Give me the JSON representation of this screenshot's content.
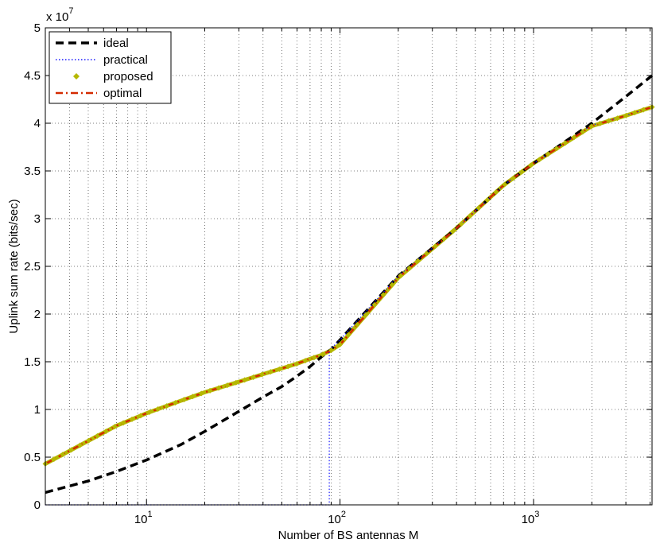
{
  "chart_data": {
    "type": "line",
    "xlabel": "Number of BS antennas M",
    "ylabel": "Uplink sum rate (bits/sec)",
    "x_scale": "log",
    "xlim": [
      3,
      4096
    ],
    "ylim": [
      0,
      50000000
    ],
    "x_ticks": [
      {
        "value": 10,
        "base": "10",
        "exp": "1"
      },
      {
        "value": 100,
        "base": "10",
        "exp": "2"
      },
      {
        "value": 1000,
        "base": "10",
        "exp": "3"
      }
    ],
    "y_ticks": [
      {
        "value": 0,
        "label": "0"
      },
      {
        "value": 5000000,
        "label": "0.5"
      },
      {
        "value": 10000000,
        "label": "1"
      },
      {
        "value": 15000000,
        "label": "1.5"
      },
      {
        "value": 20000000,
        "label": "2"
      },
      {
        "value": 25000000,
        "label": "2.5"
      },
      {
        "value": 30000000,
        "label": "3"
      },
      {
        "value": 35000000,
        "label": "3.5"
      },
      {
        "value": 40000000,
        "label": "4"
      },
      {
        "value": 45000000,
        "label": "4.5"
      },
      {
        "value": 50000000,
        "label": "5"
      }
    ],
    "y_multiplier": {
      "base": "x 10",
      "exp": "7"
    },
    "grid": true,
    "legend_position": "top-left",
    "series": [
      {
        "name": "ideal",
        "color": "#000000",
        "style": "dashed",
        "x": [
          3,
          5,
          7,
          10,
          15,
          20,
          30,
          40,
          50,
          60,
          70,
          80,
          90,
          100,
          200,
          400,
          700,
          1000,
          2000,
          3000,
          4096
        ],
        "y": [
          1300000,
          2500000,
          3500000,
          4700000,
          6300000,
          7700000,
          9800000,
          11300000,
          12400000,
          13500000,
          14500000,
          15500000,
          16300000,
          17300000,
          24000000,
          29000000,
          33500000,
          35800000,
          40000000,
          42800000,
          45000000
        ]
      },
      {
        "name": "practical",
        "color": "#1a1aff",
        "style": "dotted",
        "x": [
          3,
          88,
          88,
          90,
          100,
          200,
          400,
          700,
          1000,
          2000,
          3000,
          4096
        ],
        "y": [
          0,
          0,
          16200000,
          16400000,
          17300000,
          24000000,
          29000000,
          33500000,
          35800000,
          39800000,
          40800000,
          41700000
        ]
      },
      {
        "name": "proposed",
        "color": "#b5b800",
        "style": "markers",
        "x": [
          3,
          7,
          10,
          15,
          20,
          30,
          40,
          50,
          60,
          70,
          80,
          90,
          100,
          200,
          400,
          700,
          1000,
          2000,
          3000,
          4096
        ],
        "y": [
          4300000,
          8300000,
          9600000,
          10900000,
          11800000,
          12900000,
          13700000,
          14300000,
          14800000,
          15300000,
          15700000,
          16200000,
          16800000,
          23800000,
          29000000,
          33500000,
          35800000,
          39700000,
          40800000,
          41700000
        ]
      },
      {
        "name": "optimal",
        "color": "#d42a00",
        "style": "dashdot",
        "x": [
          3,
          7,
          10,
          15,
          20,
          30,
          40,
          50,
          60,
          70,
          80,
          90,
          100,
          200,
          400,
          700,
          1000,
          2000,
          3000,
          4096
        ],
        "y": [
          4300000,
          8300000,
          9600000,
          10900000,
          11800000,
          12900000,
          13700000,
          14300000,
          14800000,
          15300000,
          15700000,
          16200000,
          16800000,
          23800000,
          29000000,
          33500000,
          35800000,
          39700000,
          40800000,
          41700000
        ]
      }
    ]
  }
}
